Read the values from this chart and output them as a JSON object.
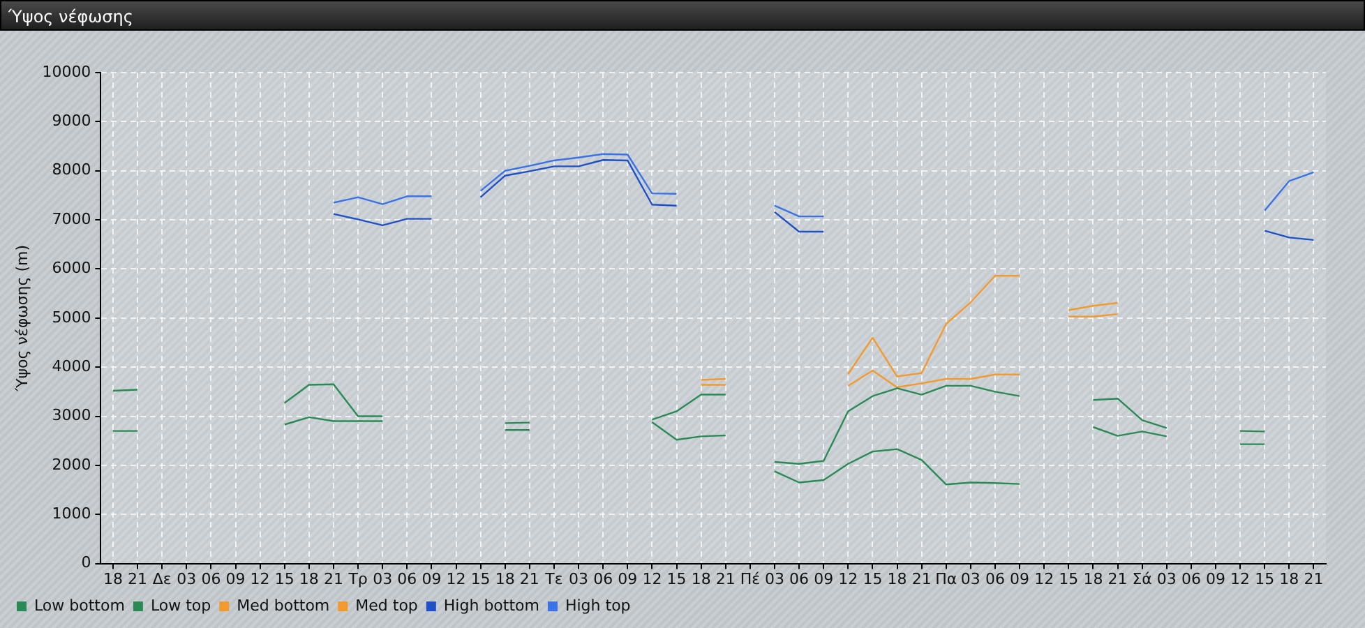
{
  "chart_data": {
    "type": "line",
    "title": "Ύψος νέφωσης",
    "ylabel": "Ύψος νέφωσης (m)",
    "categories": [
      "18",
      "21",
      "Δε",
      "03",
      "06",
      "09",
      "12",
      "15",
      "18",
      "21",
      "Τρ",
      "03",
      "06",
      "09",
      "12",
      "15",
      "18",
      "21",
      "Τε",
      "03",
      "06",
      "09",
      "12",
      "15",
      "18",
      "21",
      "Πέ",
      "03",
      "06",
      "09",
      "12",
      "15",
      "18",
      "21",
      "Πα",
      "03",
      "06",
      "09",
      "12",
      "15",
      "18",
      "21",
      "Σά",
      "03",
      "06",
      "09",
      "12",
      "15",
      "18",
      "21"
    ],
    "series": [
      {
        "name": "Low bottom",
        "color": "#2a8a55",
        "values": [
          2700,
          2700,
          null,
          null,
          null,
          null,
          null,
          2830,
          2980,
          2900,
          2900,
          2900,
          null,
          null,
          null,
          null,
          2720,
          2720,
          null,
          null,
          null,
          null,
          2880,
          2520,
          2590,
          2610,
          null,
          1880,
          1650,
          1700,
          2030,
          2280,
          2330,
          2110,
          1610,
          1650,
          1640,
          1620,
          null,
          null,
          2780,
          2600,
          2690,
          2590,
          null,
          null,
          2430,
          2430,
          null,
          null
        ]
      },
      {
        "name": "Low top",
        "color": "#2a8a55",
        "values": [
          3520,
          3540,
          null,
          null,
          null,
          null,
          null,
          3270,
          3640,
          3650,
          3000,
          3000,
          null,
          null,
          null,
          null,
          2860,
          2870,
          null,
          null,
          null,
          null,
          2930,
          3100,
          3440,
          3440,
          null,
          2070,
          2030,
          2090,
          3100,
          3410,
          3570,
          3440,
          3620,
          3620,
          3500,
          3410,
          null,
          null,
          3330,
          3360,
          2920,
          2760,
          null,
          null,
          2700,
          2690,
          null,
          null
        ]
      },
      {
        "name": "Med bottom",
        "color": "#f39a2e",
        "values": [
          null,
          null,
          null,
          null,
          null,
          null,
          null,
          null,
          null,
          null,
          null,
          null,
          null,
          null,
          null,
          null,
          null,
          null,
          null,
          null,
          null,
          null,
          null,
          null,
          3640,
          3640,
          null,
          null,
          null,
          null,
          3620,
          3930,
          3590,
          3670,
          3760,
          3760,
          3850,
          3850,
          null,
          5030,
          5030,
          5080,
          null,
          null,
          null,
          null,
          null,
          null,
          null,
          null
        ]
      },
      {
        "name": "Med top",
        "color": "#f39a2e",
        "values": [
          null,
          null,
          null,
          null,
          null,
          null,
          null,
          null,
          null,
          null,
          null,
          null,
          null,
          null,
          null,
          null,
          null,
          null,
          null,
          null,
          null,
          null,
          null,
          null,
          3740,
          3760,
          null,
          null,
          null,
          null,
          3860,
          4600,
          3810,
          3880,
          4880,
          5320,
          5860,
          5860,
          null,
          5160,
          5250,
          5310,
          null,
          null,
          null,
          null,
          null,
          null,
          null,
          null
        ]
      },
      {
        "name": "High bottom",
        "color": "#1f50c8",
        "values": [
          null,
          null,
          null,
          null,
          null,
          null,
          null,
          null,
          null,
          7120,
          7010,
          6890,
          7020,
          7020,
          null,
          7460,
          7900,
          7990,
          8090,
          8090,
          8220,
          8210,
          7310,
          7290,
          null,
          null,
          null,
          7160,
          6760,
          6760,
          null,
          null,
          null,
          null,
          null,
          null,
          null,
          null,
          null,
          null,
          null,
          null,
          null,
          null,
          null,
          null,
          null,
          6780,
          6640,
          6590
        ]
      },
      {
        "name": "High top",
        "color": "#3a72e8",
        "values": [
          null,
          null,
          null,
          null,
          null,
          null,
          null,
          null,
          null,
          7350,
          7460,
          7320,
          7480,
          7480,
          null,
          7590,
          8000,
          8100,
          8210,
          8270,
          8340,
          8330,
          7540,
          7530,
          null,
          null,
          null,
          7290,
          7070,
          7070,
          null,
          null,
          null,
          null,
          null,
          null,
          null,
          null,
          null,
          null,
          null,
          null,
          null,
          null,
          null,
          null,
          null,
          7190,
          7790,
          7970
        ]
      }
    ],
    "ylim": [
      0,
      10000
    ],
    "yticks": [
      0,
      1000,
      2000,
      3000,
      4000,
      5000,
      6000,
      7000,
      8000,
      9000,
      10000
    ],
    "grid": true,
    "legend": "bottom",
    "marker": "none",
    "line_style": "solid"
  }
}
